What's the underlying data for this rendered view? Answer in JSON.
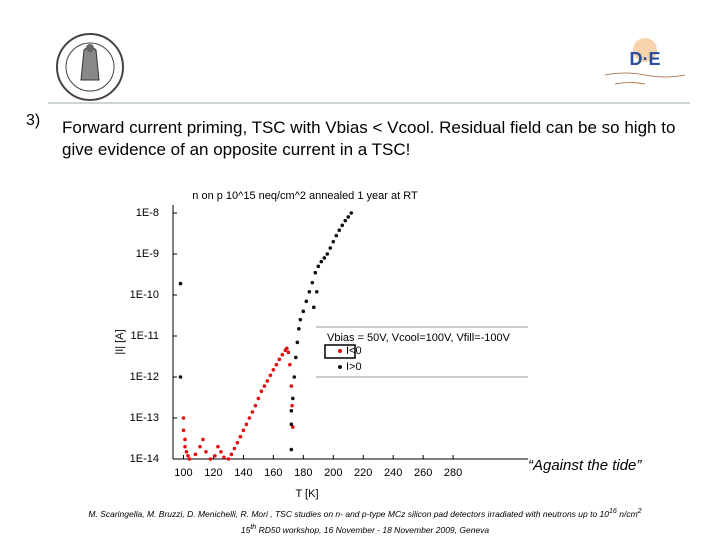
{
  "slide_number": "3)",
  "heading": "Forward current priming, TSC with Vbias < Vcool.  Residual field can be so high to give evidence of an opposite current in a   TSC!",
  "logo_right": "D·E",
  "quote": "“Against the tide”",
  "citation": {
    "line1": "M. Scaringella, M. Bruzzi, D. Menichelli, R. Mori , TSC studies on n- and p-type MCz silicon pad detectors irradiated with neutrons up to 10",
    "exp1": "16",
    "unit": "n/cm",
    "exp2": "2",
    "num": "15",
    "ordinal": "th",
    "line2": "RD50 workshop, 16 November - 18 November 2009, Geneva"
  },
  "chart_data": {
    "type": "scatter",
    "title": "n on p 10^15 neq/cm^2 annealed 1 year at RT",
    "x_label": "T   [K]",
    "y_label": "|I|   [A]",
    "legend_title": "Vbias = 50V, Vcool=100V, Vfill=-100V",
    "xlim": [
      93,
      330
    ],
    "xticks": [
      100,
      120,
      140,
      160,
      180,
      200,
      220,
      240,
      260,
      280
    ],
    "ylim": [
      1e-14,
      1e-08
    ],
    "ylog": true,
    "yticks": [
      {
        "value": 1e-08,
        "label": "1E-8"
      },
      {
        "value": 1e-09,
        "label": "1E-9"
      },
      {
        "value": 1e-10,
        "label": "1E-10"
      },
      {
        "value": 1e-11,
        "label": "1E-11"
      },
      {
        "value": 1e-12,
        "label": "1E-12"
      },
      {
        "value": 1e-13,
        "label": "1E-13"
      },
      {
        "value": 1e-14,
        "label": "1E-14"
      }
    ],
    "series": [
      {
        "name": "I<0",
        "color": "#e01010",
        "x": [
          100,
          100,
          101,
          101,
          102,
          103,
          104,
          108,
          111,
          113,
          115,
          118,
          121,
          123,
          125,
          127,
          130,
          132,
          134,
          136,
          138,
          140,
          142,
          144,
          146,
          148,
          150,
          152,
          154,
          156,
          158,
          160,
          162,
          164,
          166,
          168,
          169,
          170,
          171,
          172,
          172.5,
          173
        ],
        "values": [
          1e-13,
          5e-14,
          3e-14,
          2e-14,
          1.5e-14,
          1.2e-14,
          1e-14,
          1.3e-14,
          2e-14,
          3e-14,
          1.5e-14,
          1e-14,
          1.2e-14,
          2e-14,
          1.5e-14,
          1.1e-14,
          1e-14,
          1.3e-14,
          1.8e-14,
          2.5e-14,
          3.5e-14,
          5e-14,
          7e-14,
          1e-13,
          1.4e-13,
          2e-13,
          3e-13,
          4.5e-13,
          6e-13,
          8e-13,
          1.1e-12,
          1.5e-12,
          2e-12,
          2.7e-12,
          3.5e-12,
          4.5e-12,
          5e-12,
          4e-12,
          2e-12,
          6e-13,
          2e-13,
          6e-14
        ]
      },
      {
        "name": "I>0",
        "color": "#111111",
        "x": [
          98,
          98,
          172,
          172,
          172,
          173,
          174,
          175,
          176,
          177,
          178,
          180,
          182,
          184,
          186,
          187,
          188,
          189,
          190,
          192,
          194,
          196,
          198,
          200,
          202,
          204,
          206,
          208,
          210,
          212
        ],
        "values": [
          1.9e-10,
          1e-12,
          1.7e-14,
          1.5e-13,
          7e-14,
          3e-13,
          1e-12,
          3e-12,
          7e-12,
          1.5e-11,
          2.5e-11,
          4e-11,
          7e-11,
          1.2e-10,
          2e-10,
          5e-11,
          3.5e-10,
          1.2e-10,
          5e-10,
          6.5e-10,
          8e-10,
          1e-09,
          1.4e-09,
          2e-09,
          2.8e-09,
          3.8e-09,
          5e-09,
          6.5e-09,
          8e-09,
          1e-08
        ]
      }
    ]
  }
}
